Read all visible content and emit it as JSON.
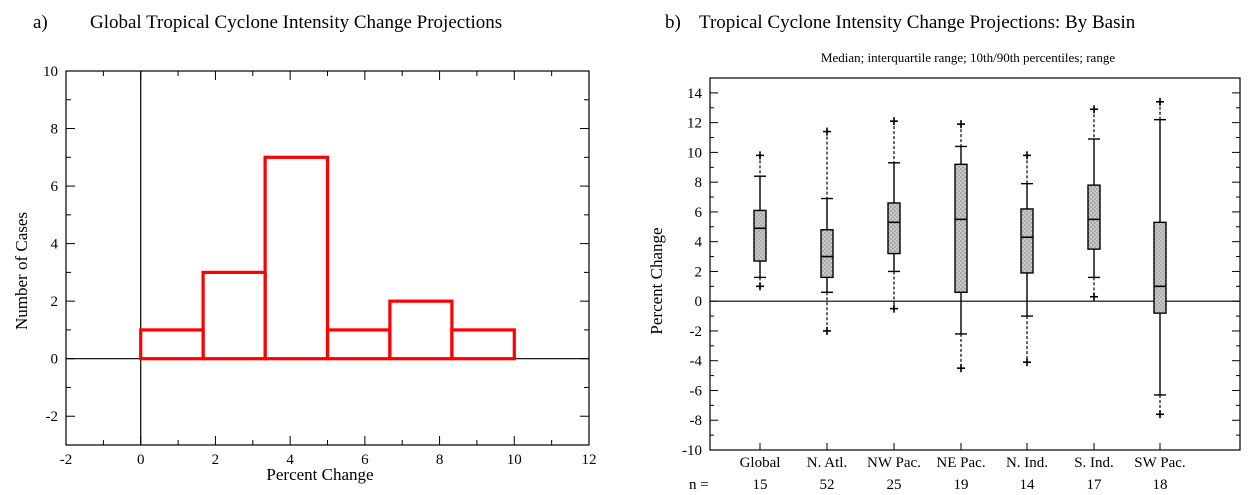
{
  "chart_data": [
    {
      "type": "histogram",
      "panel_label": "a)",
      "title": "Global Tropical Cyclone Intensity Change Projections",
      "xlabel": "Percent Change",
      "ylabel": "Number of Cases",
      "xlim": [
        -2,
        12
      ],
      "ylim": [
        -3,
        10
      ],
      "xticks": [
        -2,
        0,
        2,
        4,
        6,
        8,
        10,
        12
      ],
      "yticks": [
        -2,
        0,
        2,
        4,
        6,
        8,
        10
      ],
      "bin_edges": [
        0,
        1.67,
        3.33,
        5,
        6.67,
        8.33,
        10
      ],
      "counts": [
        1,
        3,
        7,
        1,
        2,
        1
      ],
      "bar_color": "#ff0000"
    },
    {
      "type": "boxplot",
      "panel_label": "b)",
      "title": "Tropical Cyclone Intensity Change Projections:  By Basin",
      "subtitle": "Median; interquartile range; 10th/90th percentiles; range",
      "ylabel": "Percent Change",
      "ylim": [
        -10,
        15
      ],
      "yticks": [
        -10,
        -8,
        -6,
        -4,
        -2,
        0,
        2,
        4,
        6,
        8,
        10,
        12,
        14
      ],
      "n_label": "n =",
      "categories": [
        "Global",
        "N. Atl.",
        "NW Pac.",
        "NE Pac.",
        "N. Ind.",
        "S. Ind.",
        "SW Pac."
      ],
      "n": [
        "15",
        "52",
        "25",
        "19",
        "14",
        "17",
        "18"
      ],
      "boxes": [
        {
          "min": 1.0,
          "p10": 1.6,
          "q1": 2.7,
          "median": 4.9,
          "q3": 6.1,
          "p90": 8.4,
          "max": 9.8
        },
        {
          "min": -2.0,
          "p10": 0.6,
          "q1": 1.6,
          "median": 3.0,
          "q3": 4.8,
          "p90": 6.9,
          "max": 11.4
        },
        {
          "min": -0.5,
          "p10": 2.0,
          "q1": 3.2,
          "median": 5.3,
          "q3": 6.6,
          "p90": 9.3,
          "max": 12.1
        },
        {
          "min": -4.5,
          "p10": -2.2,
          "q1": 0.6,
          "median": 5.5,
          "q3": 9.2,
          "p90": 10.4,
          "max": 11.9
        },
        {
          "min": -4.1,
          "p10": -1.0,
          "q1": 1.9,
          "median": 4.3,
          "q3": 6.2,
          "p90": 7.9,
          "max": 9.8
        },
        {
          "min": 0.3,
          "p10": 1.6,
          "q1": 3.5,
          "median": 5.5,
          "q3": 7.8,
          "p90": 10.9,
          "max": 12.9
        },
        {
          "min": -7.6,
          "p10": -6.3,
          "q1": -0.8,
          "median": 1.0,
          "q3": 5.3,
          "p90": 12.2,
          "max": 13.4
        }
      ]
    }
  ]
}
